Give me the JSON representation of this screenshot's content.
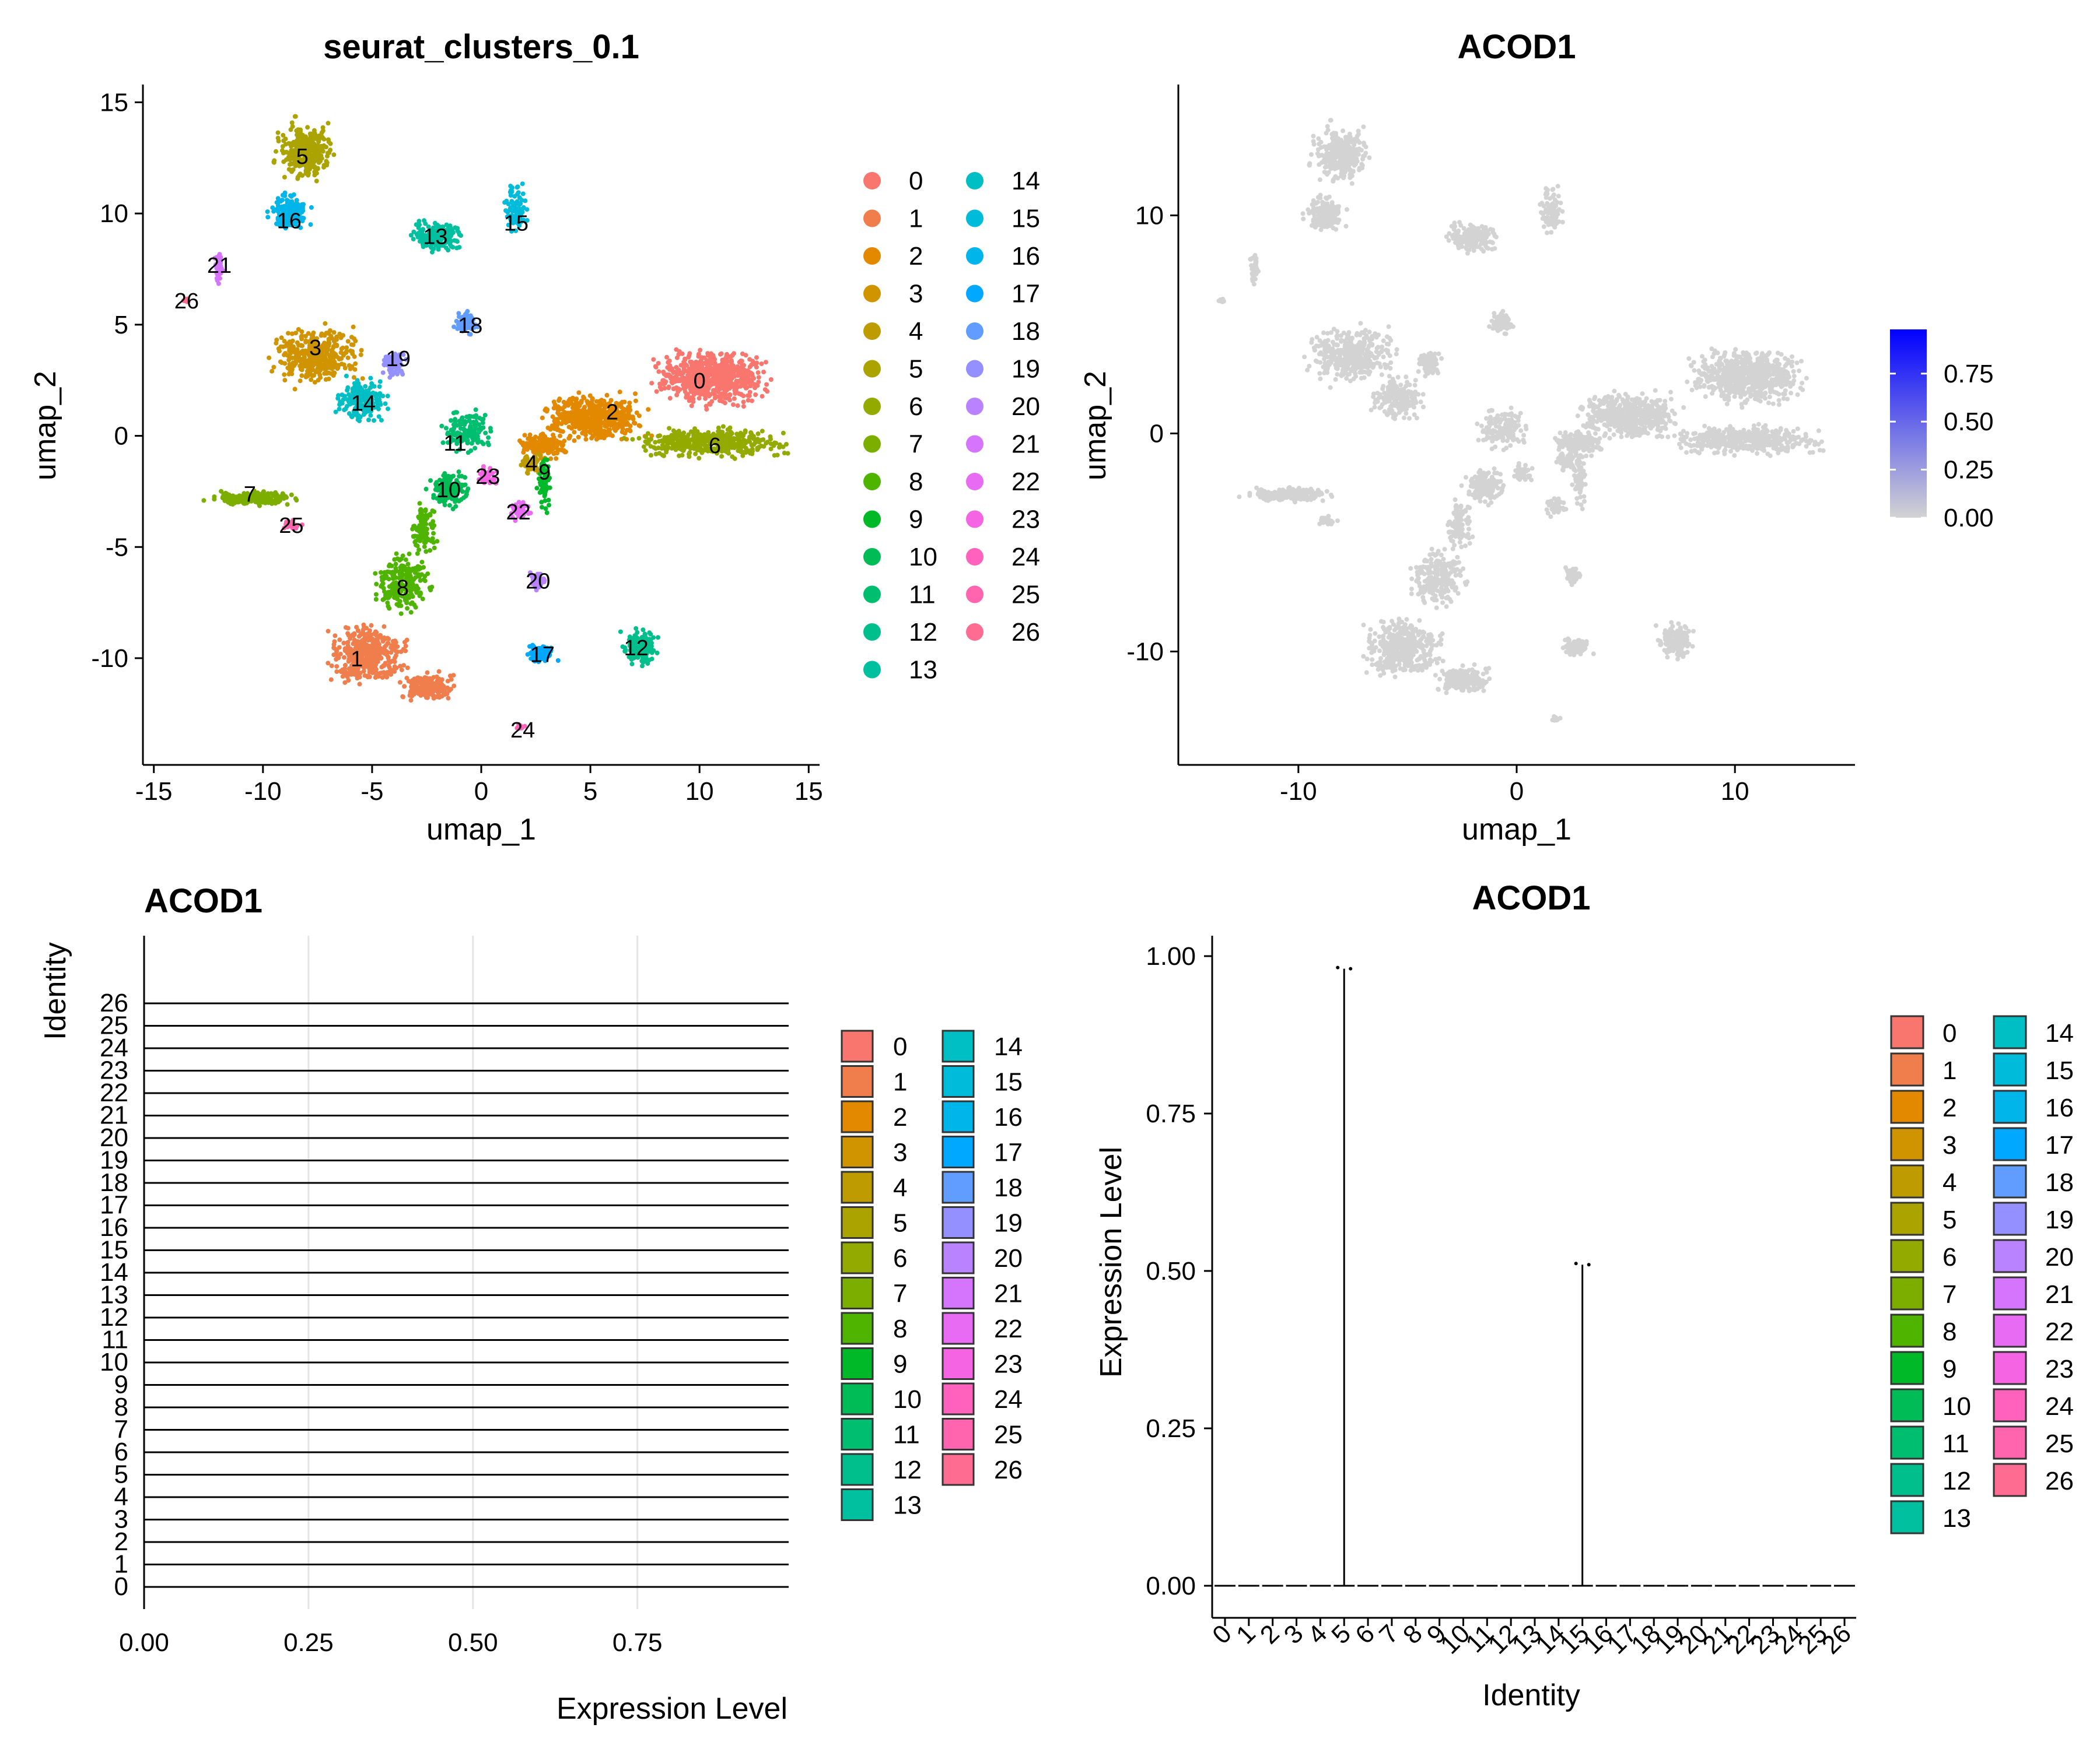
{
  "chart_data": [
    {
      "type": "scatter",
      "title": "seurat_clusters_0.1",
      "xlabel": "umap_1",
      "ylabel": "umap_2",
      "xlim": [
        -15.5,
        15.5
      ],
      "ylim": [
        -14.8,
        15.8
      ],
      "xticks": [
        -15,
        -10,
        -5,
        0,
        5,
        10,
        15
      ],
      "yticks": [
        -10,
        -5,
        0,
        5,
        10,
        15
      ],
      "legend_position": "right",
      "clusters": [
        {
          "id": "0",
          "color": "#F8766D",
          "label_x": 10,
          "label_y": 2.5
        },
        {
          "id": "1",
          "color": "#F07E4C",
          "label_x": -5.7,
          "label_y": -10
        },
        {
          "id": "2",
          "color": "#E38900",
          "label_x": 6,
          "label_y": 1.1
        },
        {
          "id": "3",
          "color": "#D09400",
          "label_x": -7.6,
          "label_y": 4
        },
        {
          "id": "4",
          "color": "#BE9C00",
          "label_x": 2.3,
          "label_y": -1.2
        },
        {
          "id": "5",
          "color": "#ABA300",
          "label_x": -8.2,
          "label_y": 12.6
        },
        {
          "id": "6",
          "color": "#93AA00",
          "label_x": 10.7,
          "label_y": -0.4
        },
        {
          "id": "7",
          "color": "#7CAE00",
          "label_x": -10.6,
          "label_y": -2.6
        },
        {
          "id": "8",
          "color": "#4FB400",
          "label_x": -3.6,
          "label_y": -6.8
        },
        {
          "id": "9",
          "color": "#00B928",
          "label_x": 2.9,
          "label_y": -1.6
        },
        {
          "id": "10",
          "color": "#00BC56",
          "label_x": -1.5,
          "label_y": -2.4
        },
        {
          "id": "11",
          "color": "#00BE70",
          "label_x": -1.2,
          "label_y": -0.3
        },
        {
          "id": "12",
          "color": "#00BF8C",
          "label_x": 7.1,
          "label_y": -9.5
        },
        {
          "id": "13",
          "color": "#00C0A0",
          "label_x": -2.1,
          "label_y": 9
        },
        {
          "id": "14",
          "color": "#00BFC4",
          "label_x": -5.4,
          "label_y": 1.5
        },
        {
          "id": "15",
          "color": "#00BBDA",
          "label_x": 1.6,
          "label_y": 9.6
        },
        {
          "id": "16",
          "color": "#00B5EA",
          "label_x": -8.8,
          "label_y": 9.7
        },
        {
          "id": "17",
          "color": "#00A9FF",
          "label_x": 2.8,
          "label_y": -9.8
        },
        {
          "id": "18",
          "color": "#619CFF",
          "label_x": -0.5,
          "label_y": 5
        },
        {
          "id": "19",
          "color": "#9590FF",
          "label_x": -3.8,
          "label_y": 3.5
        },
        {
          "id": "20",
          "color": "#B983FF",
          "label_x": 2.6,
          "label_y": -6.5
        },
        {
          "id": "21",
          "color": "#D575FE",
          "label_x": -12,
          "label_y": 7.7
        },
        {
          "id": "22",
          "color": "#E76BF3",
          "label_x": 1.7,
          "label_y": -3.4
        },
        {
          "id": "23",
          "color": "#F564E3",
          "label_x": 0.3,
          "label_y": -1.8
        },
        {
          "id": "24",
          "color": "#FF62BC",
          "label_x": 1.9,
          "label_y": -13.2
        },
        {
          "id": "25",
          "color": "#FF65AE",
          "label_x": -8.7,
          "label_y": -4
        },
        {
          "id": "26",
          "color": "#FF6C91",
          "label_x": -13.5,
          "label_y": 6.1
        }
      ]
    },
    {
      "type": "scatter",
      "title": "ACOD1",
      "xlabel": "umap_1",
      "ylabel": "umap_2",
      "xlim": [
        -15.5,
        15.5
      ],
      "ylim": [
        -15.2,
        16
      ],
      "xticks": [
        -10,
        0,
        10
      ],
      "yticks": [
        -10,
        0,
        10
      ],
      "point_color": "#D3D3D3",
      "colorbar": {
        "low_color": "#D3D3D3",
        "high_color": "#0000FF",
        "min": 0,
        "max": 0.98,
        "ticks": [
          "0.00",
          "0.25",
          "0.50",
          "0.75"
        ]
      }
    },
    {
      "type": "ridge",
      "title": "ACOD1",
      "xlabel": "Expression Level",
      "ylabel": "Identity",
      "xlim": [
        0,
        0.98
      ],
      "xticks": [
        "0.00",
        "0.25",
        "0.50",
        "0.75"
      ],
      "categories": [
        "0",
        "1",
        "2",
        "3",
        "4",
        "5",
        "6",
        "7",
        "8",
        "9",
        "10",
        "11",
        "12",
        "13",
        "14",
        "15",
        "16",
        "17",
        "18",
        "19",
        "20",
        "21",
        "22",
        "23",
        "24",
        "25",
        "26"
      ]
    },
    {
      "type": "violin",
      "title": "ACOD1",
      "xlabel": "Identity",
      "ylabel": "Expression Level",
      "ylim": [
        0,
        1
      ],
      "yticks": [
        "0.00",
        "0.25",
        "0.50",
        "0.75",
        "1.00"
      ],
      "categories": [
        "0",
        "1",
        "2",
        "3",
        "4",
        "5",
        "6",
        "7",
        "8",
        "9",
        "10",
        "11",
        "12",
        "13",
        "14",
        "15",
        "16",
        "17",
        "18",
        "19",
        "20",
        "21",
        "22",
        "23",
        "24",
        "25",
        "26"
      ],
      "max_values": [
        0,
        0,
        0,
        0,
        0,
        0.98,
        0,
        0,
        0,
        0,
        0,
        0,
        0,
        0,
        0,
        0.51,
        0,
        0,
        0,
        0,
        0,
        0,
        0,
        0,
        0,
        0,
        0
      ]
    }
  ]
}
